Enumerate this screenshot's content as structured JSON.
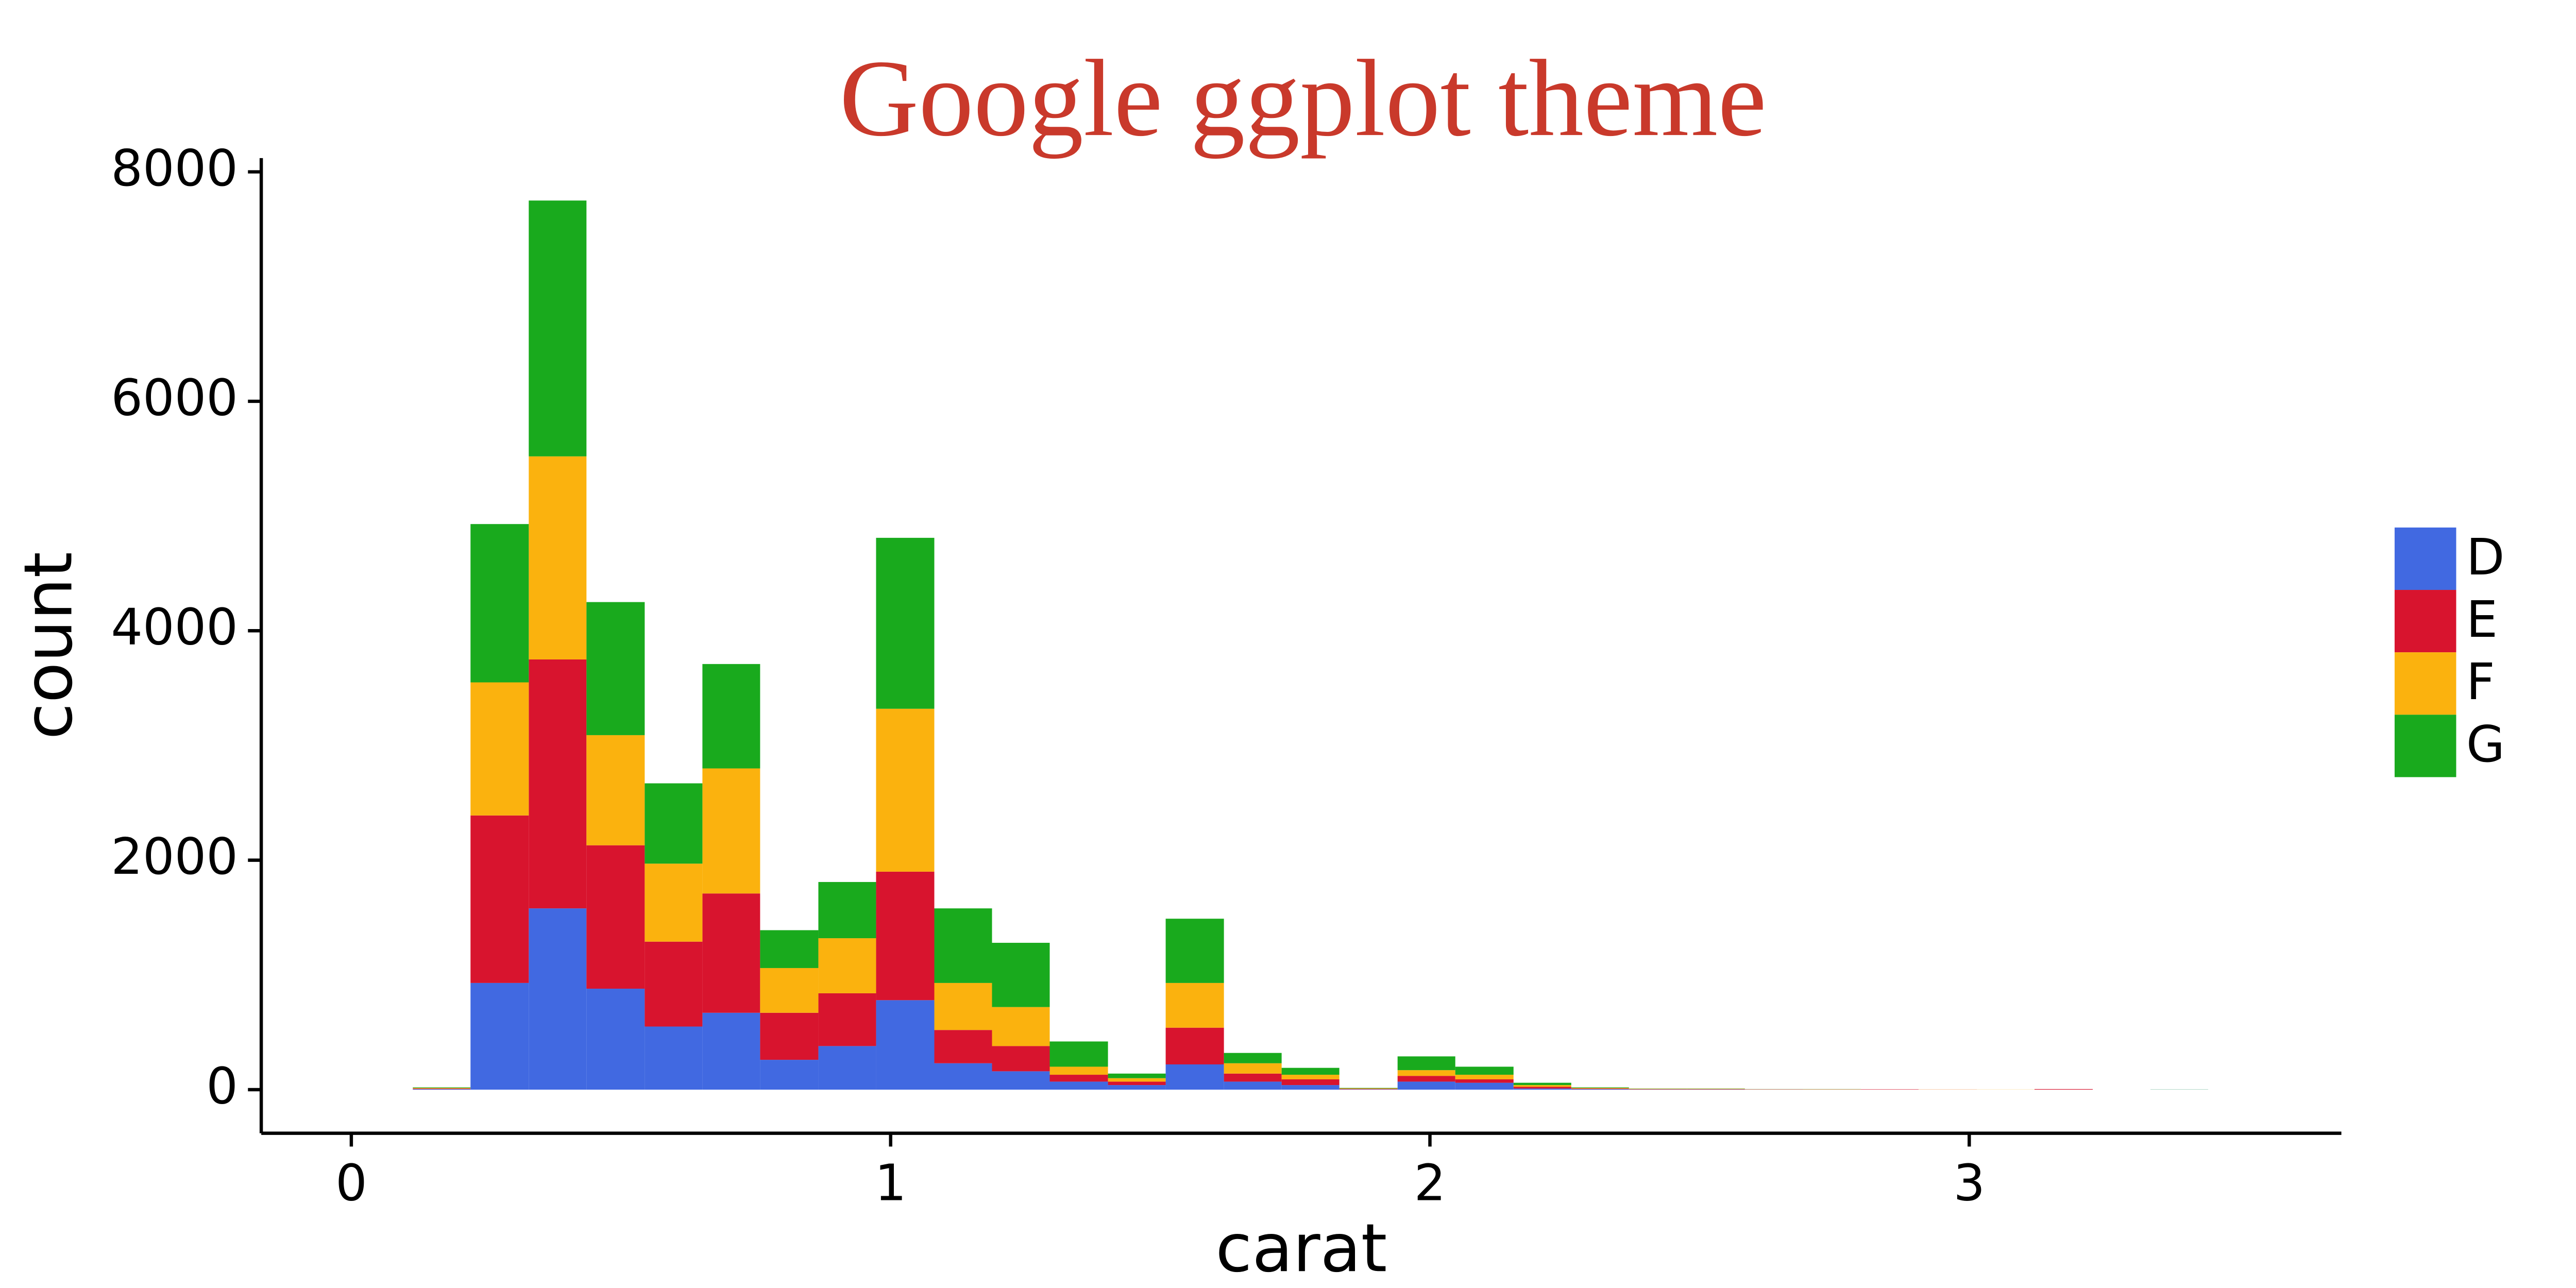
{
  "chart_data": {
    "type": "histogram",
    "title": "Google ggplot theme",
    "x_label": "carat",
    "y_label": "count",
    "bins": [
      0.114,
      0.221,
      0.329,
      0.436,
      0.544,
      0.651,
      0.758,
      0.866,
      0.973,
      1.081,
      1.188,
      1.295,
      1.403,
      1.51,
      1.618,
      1.725,
      1.832,
      1.94,
      2.047,
      2.155,
      2.262,
      2.369,
      2.477,
      2.584,
      2.692,
      2.799,
      2.906,
      3.014,
      3.121,
      3.229,
      3.336,
      3.443
    ],
    "series": [
      {
        "name": "D",
        "color": "#4169e1",
        "values": [
          5,
          930,
          1580,
          880,
          550,
          670,
          260,
          380,
          780,
          230,
          160,
          70,
          40,
          220,
          70,
          40,
          3,
          70,
          60,
          10,
          5,
          2,
          2,
          1,
          1,
          0,
          0,
          0,
          0,
          0,
          1
        ]
      },
      {
        "name": "E",
        "color": "#d8142e",
        "values": [
          5,
          1460,
          2170,
          1250,
          740,
          1040,
          410,
          460,
          1120,
          290,
          220,
          60,
          30,
          320,
          70,
          50,
          4,
          50,
          30,
          15,
          5,
          3,
          3,
          2,
          1,
          3,
          1,
          0,
          5,
          0,
          0
        ]
      },
      {
        "name": "F",
        "color": "#fbb20e",
        "values": [
          5,
          1160,
          1770,
          960,
          680,
          1090,
          390,
          480,
          1420,
          410,
          340,
          70,
          30,
          390,
          90,
          40,
          4,
          50,
          40,
          15,
          5,
          3,
          3,
          1,
          2,
          0,
          1,
          1,
          0,
          0,
          0
        ]
      },
      {
        "name": "G",
        "color": "#19aa1d",
        "values": [
          5,
          1380,
          2230,
          1160,
          700,
          910,
          330,
          490,
          1490,
          650,
          560,
          220,
          40,
          560,
          90,
          60,
          4,
          120,
          70,
          20,
          5,
          2,
          2,
          1,
          1,
          0,
          0,
          0,
          0,
          0,
          1
        ]
      }
    ],
    "xlim": [
      -0.167,
      3.69
    ],
    "ylim": [
      -380,
      8120
    ],
    "xticks": [
      0,
      1,
      2,
      3
    ],
    "yticks": [
      0,
      2000,
      4000,
      6000,
      8000
    ],
    "stacked": true,
    "legend": "right"
  }
}
